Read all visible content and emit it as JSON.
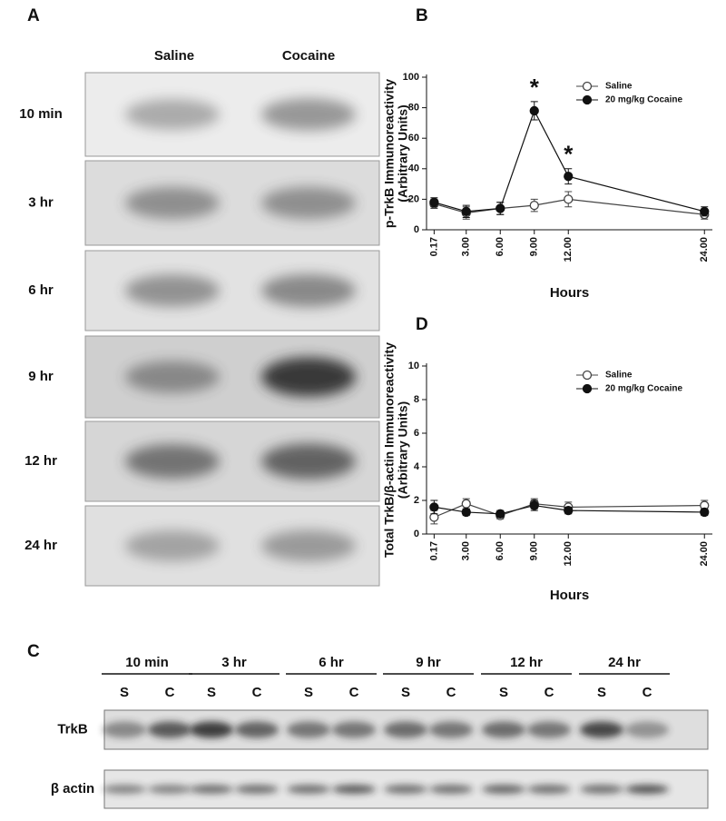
{
  "panel_a": {
    "label": "A",
    "columns": [
      "Saline",
      "Cocaine"
    ],
    "rows": [
      "10 min",
      "3 hr",
      "6 hr",
      "9 hr",
      "12 hr",
      "24 hr"
    ]
  },
  "chart_data": [
    {
      "type": "line",
      "panel": "B",
      "x": [
        0.17,
        3,
        6,
        9,
        12,
        24
      ],
      "xlabel": "Hours",
      "ylabel": [
        "p-TrkB Immunoreactivity",
        "(Arbitrary Units)"
      ],
      "xlim": [
        -0.5,
        24.7
      ],
      "ylim": [
        0,
        100
      ],
      "xticks": [
        0.17,
        {
          "value": 3,
          "label": "3.00"
        },
        {
          "value": 6,
          "label": "6.00"
        },
        {
          "value": 9,
          "label": "9.00"
        },
        {
          "value": 12,
          "label": "12.00"
        },
        {
          "value": 24,
          "label": "24.00"
        }
      ],
      "yticks": [
        0,
        20,
        40,
        60,
        80,
        100
      ],
      "legend": "upper right",
      "series": [
        {
          "name": "Saline",
          "color": "#444444",
          "fill": "#ffffff",
          "values": [
            17,
            11,
            14,
            16,
            20,
            10
          ],
          "errors": [
            3,
            4,
            4,
            4,
            5,
            3
          ]
        },
        {
          "name": "20 mg/kg Cocaine",
          "color": "#111111",
          "fill": "#111111",
          "values": [
            18,
            12,
            14,
            78,
            35,
            12
          ],
          "errors": [
            3,
            4,
            4,
            6,
            5,
            3
          ]
        }
      ],
      "annotations": [
        {
          "text": "*",
          "x": 9
        },
        {
          "text": "*",
          "x": 12
        }
      ]
    },
    {
      "type": "line",
      "panel": "D",
      "x": [
        0.17,
        3,
        6,
        9,
        12,
        24
      ],
      "xlabel": "Hours",
      "ylabel": [
        "Total TrkB/β-actin Immunoreactivity",
        "(Arbitrary Units)"
      ],
      "xlim": [
        -0.5,
        24.7
      ],
      "ylim": [
        0,
        10
      ],
      "xticks": [
        0.17,
        {
          "value": 3,
          "label": "3.00"
        },
        {
          "value": 6,
          "label": "6.00"
        },
        {
          "value": 9,
          "label": "9.00"
        },
        {
          "value": 12,
          "label": "12.00"
        },
        {
          "value": 24,
          "label": "24.00"
        }
      ],
      "yticks": [
        0,
        2,
        4,
        6,
        8,
        10
      ],
      "legend": "upper right",
      "series": [
        {
          "name": "Saline",
          "color": "#444444",
          "fill": "#ffffff",
          "values": [
            1.0,
            1.8,
            1.1,
            1.8,
            1.6,
            1.7
          ],
          "errors": [
            0.4,
            0.3,
            0.2,
            0.3,
            0.3,
            0.3
          ]
        },
        {
          "name": "20 mg/kg Cocaine",
          "color": "#111111",
          "fill": "#111111",
          "values": [
            1.6,
            1.3,
            1.2,
            1.7,
            1.4,
            1.3
          ],
          "errors": [
            0.4,
            0.2,
            0.2,
            0.3,
            0.2,
            0.2
          ]
        }
      ],
      "annotations": []
    }
  ],
  "panel_c": {
    "label": "C",
    "groups": [
      "10 min",
      "3 hr",
      "6 hr",
      "9 hr",
      "12 hr",
      "24 hr"
    ],
    "lanes": [
      "S",
      "C"
    ],
    "rows": [
      "TrkB",
      "β actin"
    ]
  }
}
